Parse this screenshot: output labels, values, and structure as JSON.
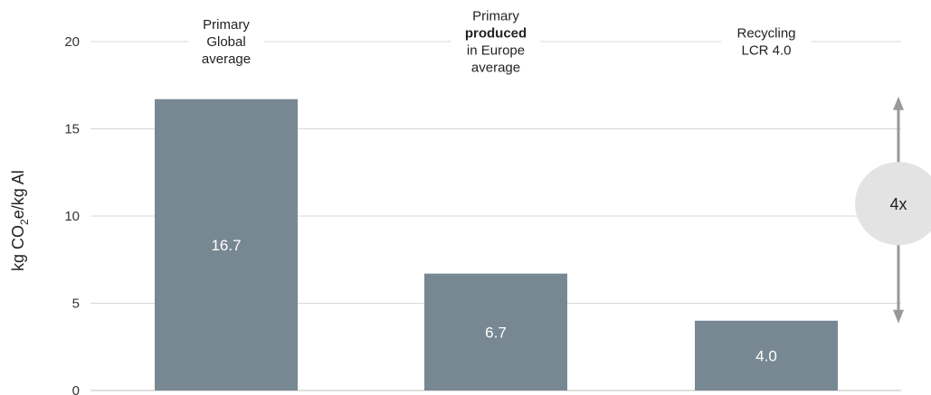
{
  "chart_data": {
    "type": "bar",
    "categories": [
      [
        "Primary",
        "Global",
        "average"
      ],
      [
        "Primary",
        "produced",
        "in Europe",
        "average"
      ],
      [
        "Recycling",
        "LCR 4.0"
      ]
    ],
    "bold_lines": [
      [],
      [
        1
      ],
      []
    ],
    "values": [
      16.7,
      6.7,
      4.0
    ],
    "value_labels": [
      "16.7",
      "6.7",
      "4.0"
    ],
    "ylabel": {
      "prefix": "kg CO",
      "sub": "2",
      "suffix": "e/kg Al"
    },
    "ylim": [
      0,
      20
    ],
    "yticks": [
      0,
      5,
      10,
      15,
      20
    ],
    "grid": true,
    "bar_color": "#778893",
    "annotation": {
      "label": "4x",
      "from_value": 16.7,
      "to_value": 4.0,
      "color": "#999999",
      "circle_color": "#e3e3e3"
    }
  }
}
